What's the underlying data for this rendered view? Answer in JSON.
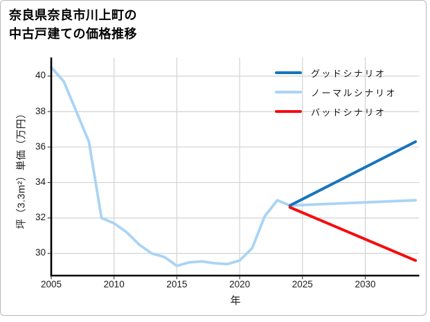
{
  "title": {
    "line1": "奈良県奈良市川上町の",
    "line2": "中古戸建ての価格推移"
  },
  "legend": {
    "items": [
      {
        "label": "グッドシナリオ",
        "color": "#1774bd"
      },
      {
        "label": "ノーマルシナリオ",
        "color": "#a9d4f5"
      },
      {
        "label": "バッドシナリオ",
        "color": "#f40d0d"
      }
    ]
  },
  "colors": {
    "good": "#1774bd",
    "normal": "#a9d4f5",
    "bad": "#f40d0d",
    "grid": "#d2d2d2",
    "spine": "#000000",
    "tick": "#444444",
    "text": "#1a1a1a",
    "frame_border": "#b9b9b9",
    "background": "#ffffff"
  },
  "chart_data": {
    "type": "line",
    "title": "奈良県奈良市川上町の中古戸建ての価格推移",
    "xlabel": "年",
    "ylabel": "坪（3.3m²）単価（万円）",
    "x_ticks": [
      2005,
      2010,
      2015,
      2020,
      2025,
      2030
    ],
    "y_ticks": [
      30,
      32,
      34,
      36,
      38,
      40
    ],
    "xlim": [
      2005,
      2034.3
    ],
    "ylim": [
      28.75,
      41.05
    ],
    "grid": true,
    "legend_position": "upper right",
    "series": [
      {
        "name": "グッドシナリオ",
        "color": "#1774bd",
        "width": 4,
        "points": [
          [
            2024,
            32.7
          ],
          [
            2034,
            36.3
          ]
        ]
      },
      {
        "name": "ノーマルシナリオ",
        "color": "#a9d4f5",
        "width": 3.8,
        "points": [
          [
            2005,
            40.5
          ],
          [
            2006,
            39.7
          ],
          [
            2007,
            38.0
          ],
          [
            2008,
            36.3
          ],
          [
            2009,
            32.0
          ],
          [
            2010,
            31.7
          ],
          [
            2011,
            31.2
          ],
          [
            2012,
            30.5
          ],
          [
            2013,
            30.0
          ],
          [
            2014,
            29.8
          ],
          [
            2015,
            29.3
          ],
          [
            2016,
            29.5
          ],
          [
            2017,
            29.55
          ],
          [
            2018,
            29.45
          ],
          [
            2019,
            29.4
          ],
          [
            2020,
            29.6
          ],
          [
            2021,
            30.3
          ],
          [
            2022,
            32.1
          ],
          [
            2023,
            33.0
          ],
          [
            2024,
            32.7
          ],
          [
            2034,
            33.0
          ]
        ]
      },
      {
        "name": "バッドシナリオ",
        "color": "#f40d0d",
        "width": 4,
        "points": [
          [
            2024,
            32.6
          ],
          [
            2034,
            29.6
          ]
        ]
      }
    ],
    "draw_order": [
      1,
      0,
      2
    ]
  }
}
